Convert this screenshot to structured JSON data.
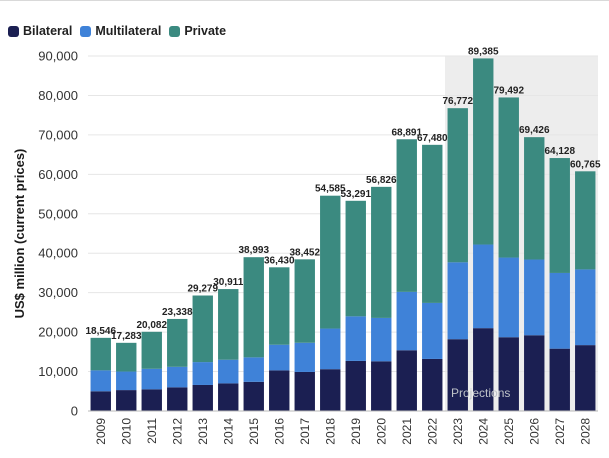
{
  "colors": {
    "bilateral": "#1b1f52",
    "multilateral": "#3f82d8",
    "private": "#3b8a80",
    "projection_shade": "#ededed",
    "grid": "#e6e6e6",
    "axis": "#b8b8b8"
  },
  "chart_data": {
    "type": "bar",
    "stacked": true,
    "title": "",
    "xlabel": "",
    "ylabel": "US$ million (current prices)",
    "ylim": [
      0,
      90000
    ],
    "yticks": [
      0,
      10000,
      20000,
      30000,
      40000,
      50000,
      60000,
      70000,
      80000,
      90000
    ],
    "ytick_labels": [
      "0",
      "10,000",
      "20,000",
      "30,000",
      "40,000",
      "50,000",
      "60,000",
      "70,000",
      "80,000",
      "90,000"
    ],
    "categories": [
      "2009",
      "2010",
      "2011",
      "2012",
      "2013",
      "2014",
      "2015",
      "2016",
      "2017",
      "2018",
      "2019",
      "2020",
      "2021",
      "2022",
      "2023",
      "2024",
      "2025",
      "2026",
      "2027",
      "2028"
    ],
    "series": [
      {
        "name": "Bilateral",
        "values": [
          5000,
          5300,
          5500,
          6000,
          6600,
          7000,
          7400,
          10300,
          9900,
          10600,
          12700,
          12600,
          15400,
          13200,
          18200,
          21000,
          18700,
          19200,
          15800,
          16700
        ]
      },
      {
        "name": "Multilateral",
        "values": [
          5300,
          4700,
          5200,
          5200,
          5800,
          6000,
          6200,
          6500,
          7400,
          10300,
          11300,
          11000,
          14800,
          14200,
          19500,
          21200,
          20200,
          19200,
          19200,
          19200
        ]
      },
      {
        "name": "Private",
        "values": [
          8246,
          7283,
          9382,
          12138,
          16879,
          17911,
          25393,
          19630,
          21152,
          33685,
          29291,
          33226,
          38691,
          40080,
          39072,
          47185,
          40592,
          31026,
          29128,
          24865
        ]
      }
    ],
    "totals": [
      18546,
      17283,
      20082,
      23338,
      29279,
      30911,
      38993,
      36430,
      38452,
      54585,
      53291,
      56826,
      68891,
      67480,
      76772,
      89385,
      79492,
      69426,
      64128,
      60765
    ],
    "total_labels": [
      "18,546",
      "17,283",
      "20,082",
      "23,338",
      "29,279",
      "30,911",
      "38,993",
      "36,430",
      "38,452",
      "54,585",
      "53,291",
      "56,826",
      "68,891",
      "67,480",
      "76,772",
      "89,385",
      "79,492",
      "69,426",
      "64,128",
      "60,765"
    ],
    "projection_label": "Projections",
    "projection_start": "2023",
    "legend_position": "top-left",
    "grid": true
  }
}
